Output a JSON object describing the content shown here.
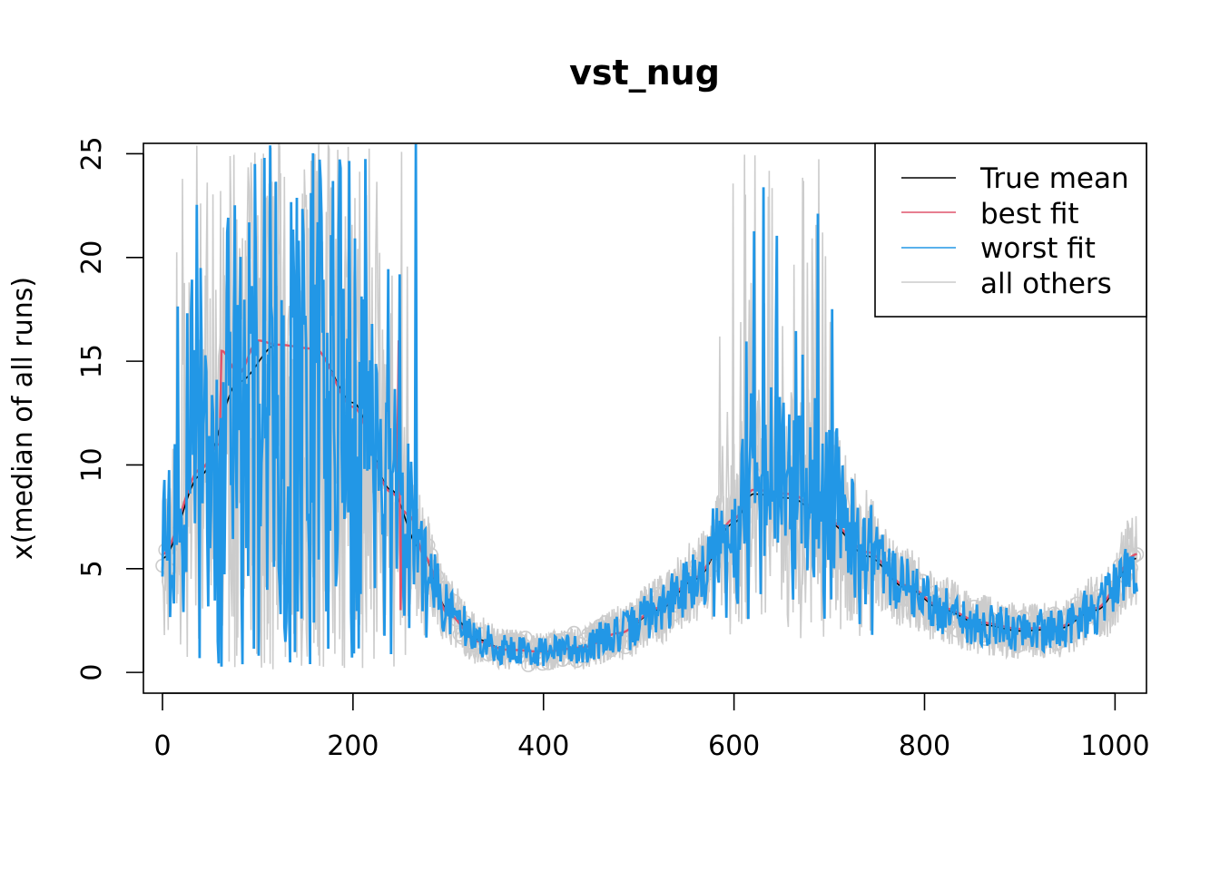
{
  "chart_data": {
    "type": "line",
    "title": "vst_nug",
    "xlabel": "",
    "ylabel": "x(median of all runs)",
    "xlim": [
      -20,
      1033
    ],
    "ylim": [
      -1,
      25.5
    ],
    "x_ticks": [
      0,
      200,
      400,
      600,
      800,
      1000
    ],
    "y_ticks": [
      0,
      5,
      10,
      15,
      20,
      25
    ],
    "legend_position": "top-right",
    "series": [
      {
        "name": "True mean",
        "color": "#000000",
        "style": "smooth",
        "knots_x": [
          0,
          40,
          80,
          120,
          160,
          200,
          240,
          270,
          300,
          330,
          360,
          400,
          440,
          480,
          520,
          560,
          600,
          620,
          660,
          700,
          740,
          780,
          820,
          860,
          900,
          940,
          980,
          1023
        ],
        "knots_y": [
          5.5,
          9.5,
          14.0,
          15.8,
          15.6,
          13.0,
          8.8,
          6.0,
          3.0,
          1.6,
          1.1,
          1.0,
          1.2,
          1.9,
          3.0,
          4.5,
          7.2,
          8.6,
          8.4,
          7.2,
          5.6,
          4.1,
          3.0,
          2.3,
          2.0,
          2.1,
          3.0,
          5.5
        ]
      },
      {
        "name": "best fit",
        "color": "#DF536B",
        "style": "smooth",
        "knots_x": [
          0,
          40,
          60,
          62,
          80,
          100,
          120,
          160,
          200,
          240,
          246,
          248,
          250,
          252,
          260,
          275,
          300,
          330,
          360,
          400,
          440,
          480,
          520,
          560,
          600,
          620,
          660,
          700,
          740,
          780,
          820,
          860,
          900,
          940,
          980,
          1023
        ],
        "knots_y": [
          5.7,
          9.8,
          11.0,
          15.5,
          14.4,
          16.0,
          15.8,
          15.6,
          12.8,
          8.7,
          8.5,
          16.0,
          3.0,
          7.8,
          7.5,
          5.6,
          2.8,
          1.5,
          1.1,
          1.0,
          1.2,
          1.9,
          3.1,
          4.6,
          7.4,
          8.8,
          8.6,
          7.3,
          5.8,
          4.2,
          3.1,
          2.4,
          2.1,
          2.2,
          3.1,
          5.7
        ]
      },
      {
        "name": "worst fit",
        "color": "#2297E6",
        "style": "noisy",
        "seed": 7,
        "count": 1024,
        "noise_scale": 0.9,
        "spike_rate": 0.85,
        "spike_max": 25.5
      },
      {
        "name": "all others",
        "color": "#CCCCCC",
        "style": "noisy",
        "seed": 3,
        "count": 1024,
        "noise_scale": 1.2,
        "spike_rate": 0.9,
        "spike_max": 25.5
      }
    ]
  }
}
